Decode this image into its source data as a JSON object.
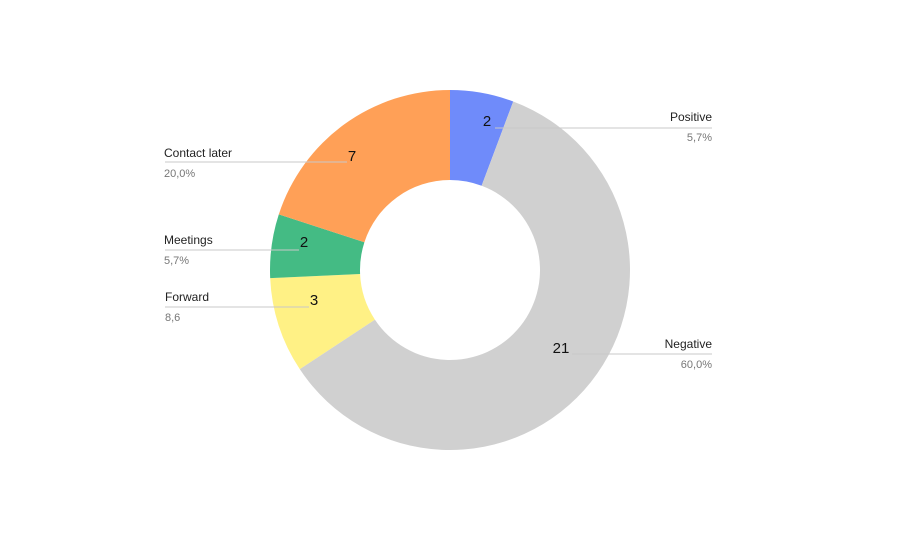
{
  "chart_data": {
    "type": "pie",
    "variant": "donut",
    "title": "",
    "start": "12 o'clock",
    "direction": "clockwise",
    "legend": "callout labels beside slices",
    "categories": [
      "Positive",
      "Negative",
      "Forward",
      "Meetings",
      "Contact later"
    ],
    "values": [
      2,
      21,
      3,
      2,
      7
    ],
    "value_labels": [
      "2",
      "21",
      "3",
      "2",
      "7"
    ],
    "percent_labels": [
      "5,7%",
      "60,0%",
      "8,6",
      "5,7%",
      "20,0%"
    ],
    "colors": [
      "#6f8bfa",
      "#d0d0d0",
      "#fff185",
      "#44bb84",
      "#ffa057"
    ]
  }
}
